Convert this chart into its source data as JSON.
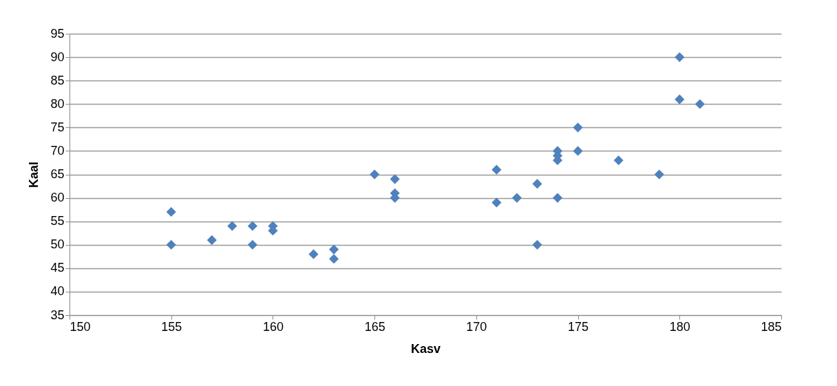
{
  "chart_data": {
    "type": "scatter",
    "xlabel": "Kasv",
    "ylabel": "Kaal",
    "x": [
      155,
      155,
      157,
      158,
      159,
      159,
      160,
      160,
      162,
      163,
      163,
      165,
      166,
      166,
      166,
      171,
      171,
      172,
      173,
      173,
      174,
      174,
      174,
      174,
      175,
      175,
      177,
      179,
      180,
      180,
      181
    ],
    "series": [
      {
        "color": "#4f81bd",
        "values": [
          57,
          50,
          51,
          54,
          54,
          50,
          54,
          53,
          48,
          49,
          47,
          65,
          64,
          61,
          60,
          66,
          59,
          60,
          63,
          50,
          70,
          69,
          68,
          60,
          75,
          70,
          68,
          65,
          90,
          81,
          80
        ]
      }
    ],
    "xlim": [
      150,
      185
    ],
    "xticks": [
      150,
      155,
      160,
      165,
      170,
      175,
      180,
      185
    ],
    "ylim": [
      35,
      95
    ],
    "yticks": [
      35,
      40,
      45,
      50,
      55,
      60,
      65,
      70,
      75,
      80,
      85,
      90,
      95
    ],
    "grid": "y",
    "marker": "diamond",
    "legend": false
  }
}
